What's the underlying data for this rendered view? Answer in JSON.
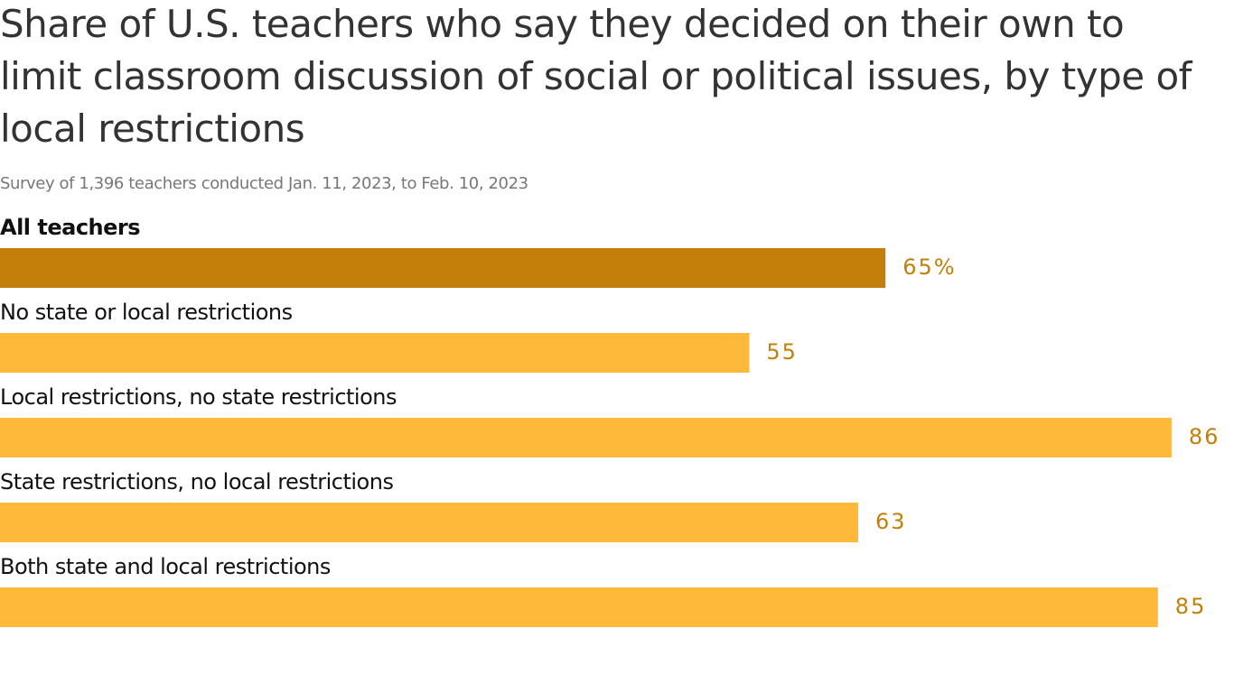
{
  "chart_data": {
    "type": "bar",
    "orientation": "horizontal",
    "title": "Share of U.S. teachers who say they decided on their own to limit classroom discussion of social or political issues, by type of local restrictions",
    "subtitle": "Survey of 1,396 teachers conducted Jan. 11, 2023, to Feb. 10, 2023",
    "categories": [
      "All teachers",
      "No state or local restrictions",
      "Local restrictions, no state restrictions",
      "State restrictions, no local restrictions",
      "Both state and local restrictions"
    ],
    "values": [
      65,
      55,
      86,
      63,
      85
    ],
    "value_labels": [
      "65%",
      "55",
      "86",
      "63",
      "85"
    ],
    "colors": [
      "#c47f0a",
      "#ffb93a",
      "#ffb93a",
      "#ffb93a",
      "#ffb93a"
    ],
    "value_label_color": "#c47f0a"
  }
}
